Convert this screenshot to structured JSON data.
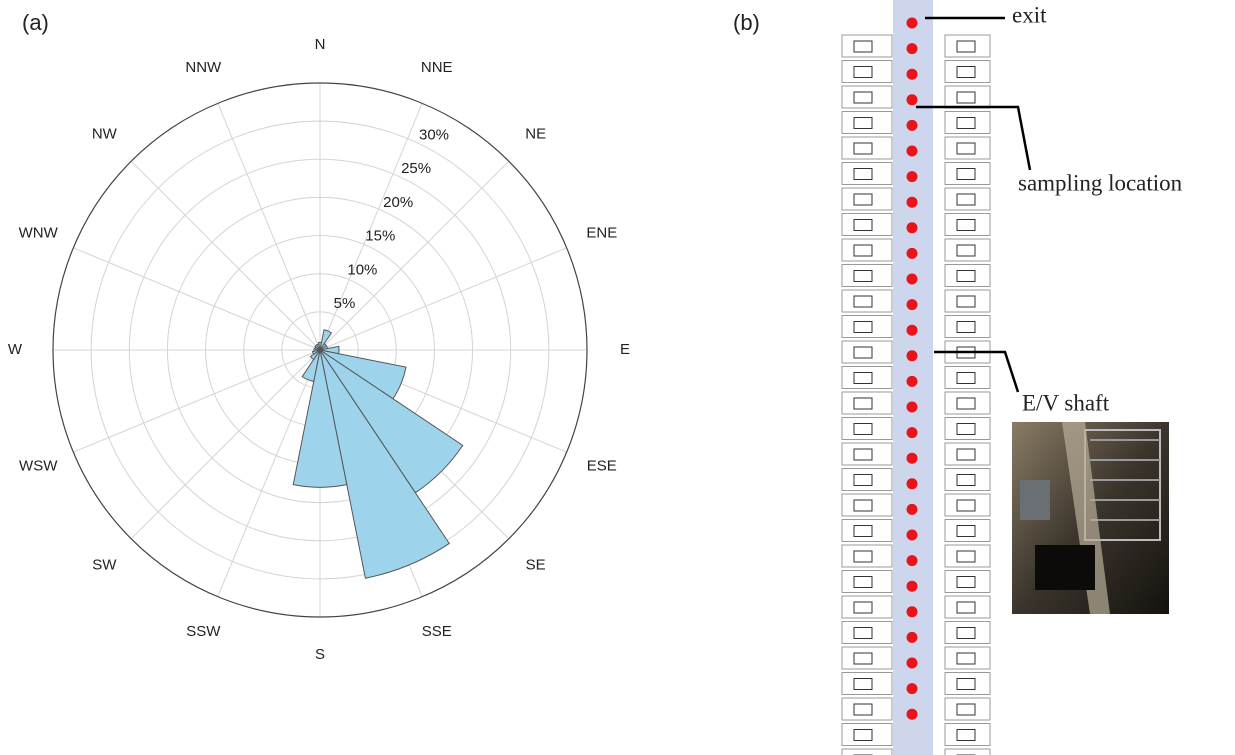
{
  "chart_data": {
    "type": "rose",
    "panel_label": "(a)",
    "categories": [
      "N",
      "NNE",
      "NE",
      "ENE",
      "E",
      "ESE",
      "SE",
      "SSE",
      "S",
      "SSW",
      "SW",
      "WSW",
      "W",
      "WNW",
      "NW",
      "NNW"
    ],
    "values": [
      1,
      2.7,
      1,
      1,
      2.5,
      11.5,
      22.5,
      30.5,
      18,
      4.2,
      1.5,
      1,
      0.8,
      0.7,
      0.8,
      0.8
    ],
    "color": "#9dd4ec",
    "ylim": [
      0,
      35
    ],
    "yticks": [
      {
        "value": 5,
        "label": "5%"
      },
      {
        "value": 10,
        "label": "10%"
      },
      {
        "value": 15,
        "label": "15%"
      },
      {
        "value": 20,
        "label": "20%"
      },
      {
        "value": 25,
        "label": "25%"
      },
      {
        "value": 30,
        "label": "30%"
      }
    ],
    "grid": true
  },
  "diagram": {
    "panel_label": "(b)",
    "exit_label": "exit",
    "sampling_label": "sampling location",
    "shaft_label": "E/V shaft"
  }
}
